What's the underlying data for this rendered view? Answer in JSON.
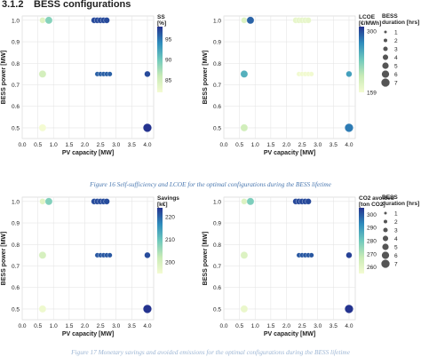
{
  "heading": {
    "number": "3.1.2",
    "title": "BESS configurations"
  },
  "caption_top": "Figure 16 Self-sufficiency and LCOE for the optimal configurations during the BESS lifetime",
  "caption_bottom": "Figure 17 Monetary savings and avoided emissions for the optimal configurations during the BESS lifetime",
  "size_legend": {
    "title": [
      "BESS",
      "duration [hrs]"
    ],
    "labels": [
      "1",
      "2",
      "3",
      "4",
      "5",
      "6",
      "7"
    ]
  },
  "chart_data": [
    {
      "type": "scatter",
      "xlabel": "PV capacity [MW]",
      "ylabel": "BESS power [MW]",
      "xlim": [
        0.0,
        4.2
      ],
      "ylim": [
        0.45,
        1.02
      ],
      "xticks": [
        "0.0",
        "0.5",
        "1.0",
        "1.5",
        "2.0",
        "2.5",
        "3.0",
        "3.5",
        "4.0"
      ],
      "yticks": [
        "0.5",
        "0.6",
        "0.7",
        "0.8",
        "0.9",
        "1.0"
      ],
      "colorbar": {
        "title": [
          "SS",
          "[%]"
        ],
        "ticks": [
          "95",
          "90",
          "85"
        ],
        "tick_values": [
          95,
          90,
          85
        ],
        "range": [
          82,
          98
        ]
      },
      "points": [
        {
          "x": 0.65,
          "y": 1.0,
          "c": 84,
          "s": 3
        },
        {
          "x": 0.85,
          "y": 1.0,
          "c": 89,
          "s": 4
        },
        {
          "x": 2.3,
          "y": 1.0,
          "c": 97,
          "s": 3
        },
        {
          "x": 2.4,
          "y": 1.0,
          "c": 97,
          "s": 3
        },
        {
          "x": 2.5,
          "y": 1.0,
          "c": 97,
          "s": 3
        },
        {
          "x": 2.6,
          "y": 1.0,
          "c": 97,
          "s": 3
        },
        {
          "x": 2.7,
          "y": 1.0,
          "c": 97,
          "s": 3
        },
        {
          "x": 0.65,
          "y": 0.75,
          "c": 85,
          "s": 4
        },
        {
          "x": 2.4,
          "y": 0.75,
          "c": 96,
          "s": 2
        },
        {
          "x": 2.5,
          "y": 0.75,
          "c": 96,
          "s": 2
        },
        {
          "x": 2.6,
          "y": 0.75,
          "c": 96,
          "s": 2
        },
        {
          "x": 2.7,
          "y": 0.75,
          "c": 96,
          "s": 2
        },
        {
          "x": 2.8,
          "y": 0.75,
          "c": 96,
          "s": 2
        },
        {
          "x": 4.0,
          "y": 0.75,
          "c": 97,
          "s": 3
        },
        {
          "x": 0.65,
          "y": 0.5,
          "c": 82,
          "s": 4
        },
        {
          "x": 4.0,
          "y": 0.5,
          "c": 98,
          "s": 5
        }
      ]
    },
    {
      "type": "scatter",
      "xlabel": "PV capacity [MW]",
      "ylabel": "BESS power [MW]",
      "xlim": [
        0.0,
        4.2
      ],
      "ylim": [
        0.45,
        1.02
      ],
      "xticks": [
        "0.0",
        "0.5",
        "1.0",
        "1.5",
        "2.0",
        "2.5",
        "3.0",
        "3.5",
        "4.0"
      ],
      "yticks": [
        "0.5",
        "0.6",
        "0.7",
        "0.8",
        "0.9",
        "1.0"
      ],
      "colorbar": {
        "title": [
          "LCOE",
          "[€/MWh]"
        ],
        "ticks": [
          "300",
          "159"
        ],
        "tick_values": [
          300,
          159
        ],
        "range": [
          159,
          310
        ]
      },
      "points": [
        {
          "x": 0.65,
          "y": 1.0,
          "c": 180,
          "s": 3
        },
        {
          "x": 0.85,
          "y": 1.0,
          "c": 290,
          "s": 4
        },
        {
          "x": 2.3,
          "y": 1.0,
          "c": 170,
          "s": 3
        },
        {
          "x": 2.4,
          "y": 1.0,
          "c": 170,
          "s": 3
        },
        {
          "x": 2.5,
          "y": 1.0,
          "c": 170,
          "s": 3
        },
        {
          "x": 2.6,
          "y": 1.0,
          "c": 170,
          "s": 3
        },
        {
          "x": 2.7,
          "y": 1.0,
          "c": 170,
          "s": 3
        },
        {
          "x": 0.65,
          "y": 0.75,
          "c": 250,
          "s": 4
        },
        {
          "x": 2.4,
          "y": 0.75,
          "c": 162,
          "s": 2
        },
        {
          "x": 2.5,
          "y": 0.75,
          "c": 162,
          "s": 2
        },
        {
          "x": 2.6,
          "y": 0.75,
          "c": 162,
          "s": 2
        },
        {
          "x": 2.7,
          "y": 0.75,
          "c": 162,
          "s": 2
        },
        {
          "x": 2.8,
          "y": 0.75,
          "c": 162,
          "s": 2
        },
        {
          "x": 4.0,
          "y": 0.75,
          "c": 260,
          "s": 3
        },
        {
          "x": 0.65,
          "y": 0.5,
          "c": 190,
          "s": 4
        },
        {
          "x": 4.0,
          "y": 0.5,
          "c": 280,
          "s": 5
        }
      ]
    },
    {
      "type": "scatter",
      "xlabel": "PV capacity [MW]",
      "ylabel": "BESS power [MW]",
      "xlim": [
        0.0,
        4.2
      ],
      "ylim": [
        0.45,
        1.02
      ],
      "xticks": [
        "0.0",
        "0.5",
        "1.0",
        "1.5",
        "2.0",
        "2.5",
        "3.0",
        "3.5",
        "4.0"
      ],
      "yticks": [
        "0.5",
        "0.6",
        "0.7",
        "0.8",
        "0.9",
        "1.0"
      ],
      "colorbar": {
        "title": [
          "Savings",
          "[k€]"
        ],
        "ticks": [
          "220",
          "210",
          "200"
        ],
        "tick_values": [
          220,
          210,
          200
        ],
        "range": [
          195,
          224
        ]
      },
      "points": [
        {
          "x": 0.65,
          "y": 1.0,
          "c": 198,
          "s": 3
        },
        {
          "x": 0.85,
          "y": 1.0,
          "c": 208,
          "s": 4
        },
        {
          "x": 2.3,
          "y": 1.0,
          "c": 222,
          "s": 3
        },
        {
          "x": 2.4,
          "y": 1.0,
          "c": 222,
          "s": 3
        },
        {
          "x": 2.5,
          "y": 1.0,
          "c": 222,
          "s": 3
        },
        {
          "x": 2.6,
          "y": 1.0,
          "c": 222,
          "s": 3
        },
        {
          "x": 2.7,
          "y": 1.0,
          "c": 222,
          "s": 3
        },
        {
          "x": 0.65,
          "y": 0.75,
          "c": 200,
          "s": 4
        },
        {
          "x": 2.4,
          "y": 0.75,
          "c": 221,
          "s": 2
        },
        {
          "x": 2.5,
          "y": 0.75,
          "c": 221,
          "s": 2
        },
        {
          "x": 2.6,
          "y": 0.75,
          "c": 221,
          "s": 2
        },
        {
          "x": 2.7,
          "y": 0.75,
          "c": 221,
          "s": 2
        },
        {
          "x": 2.8,
          "y": 0.75,
          "c": 221,
          "s": 2
        },
        {
          "x": 4.0,
          "y": 0.75,
          "c": 222,
          "s": 3
        },
        {
          "x": 0.65,
          "y": 0.5,
          "c": 196,
          "s": 4
        },
        {
          "x": 4.0,
          "y": 0.5,
          "c": 224,
          "s": 5
        }
      ]
    },
    {
      "type": "scatter",
      "xlabel": "PV capacity [MW]",
      "ylabel": "BESS power [MW]",
      "xlim": [
        0.0,
        4.2
      ],
      "ylim": [
        0.45,
        1.02
      ],
      "xticks": [
        "0.0",
        "0.5",
        "1.0",
        "1.5",
        "2.0",
        "2.5",
        "3.0",
        "3.5",
        "4.0"
      ],
      "yticks": [
        "0.5",
        "0.6",
        "0.7",
        "0.8",
        "0.9",
        "1.0"
      ],
      "colorbar": {
        "title": [
          "CO2 avoided",
          "[ton CO2]"
        ],
        "ticks": [
          "300",
          "290",
          "280",
          "270",
          "260"
        ],
        "tick_values": [
          300,
          290,
          280,
          270,
          260
        ],
        "range": [
          255,
          305
        ]
      },
      "points": [
        {
          "x": 0.65,
          "y": 1.0,
          "c": 262,
          "s": 3
        },
        {
          "x": 0.85,
          "y": 1.0,
          "c": 278,
          "s": 4
        },
        {
          "x": 2.3,
          "y": 1.0,
          "c": 302,
          "s": 3
        },
        {
          "x": 2.4,
          "y": 1.0,
          "c": 302,
          "s": 3
        },
        {
          "x": 2.5,
          "y": 1.0,
          "c": 302,
          "s": 3
        },
        {
          "x": 2.6,
          "y": 1.0,
          "c": 302,
          "s": 3
        },
        {
          "x": 2.7,
          "y": 1.0,
          "c": 302,
          "s": 3
        },
        {
          "x": 0.65,
          "y": 0.75,
          "c": 262,
          "s": 4
        },
        {
          "x": 2.4,
          "y": 0.75,
          "c": 300,
          "s": 2
        },
        {
          "x": 2.5,
          "y": 0.75,
          "c": 300,
          "s": 2
        },
        {
          "x": 2.6,
          "y": 0.75,
          "c": 300,
          "s": 2
        },
        {
          "x": 2.7,
          "y": 0.75,
          "c": 300,
          "s": 2
        },
        {
          "x": 2.8,
          "y": 0.75,
          "c": 300,
          "s": 2
        },
        {
          "x": 4.0,
          "y": 0.75,
          "c": 303,
          "s": 3
        },
        {
          "x": 0.65,
          "y": 0.5,
          "c": 258,
          "s": 4
        },
        {
          "x": 4.0,
          "y": 0.5,
          "c": 305,
          "s": 5
        }
      ]
    }
  ]
}
